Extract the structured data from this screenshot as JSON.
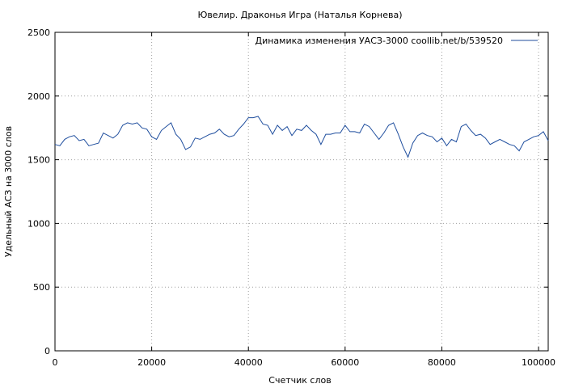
{
  "chart_data": {
    "type": "line",
    "title": "Ювелир. Драконья Игра (Наталья Корнева)",
    "xlabel": "Счетчик слов",
    "ylabel": "Удельный АСЗ на 3000 слов",
    "xlim": [
      0,
      102000
    ],
    "ylim": [
      0,
      2500
    ],
    "xticks": [
      0,
      20000,
      40000,
      60000,
      80000,
      100000
    ],
    "yticks": [
      0,
      500,
      1000,
      1500,
      2000,
      2500
    ],
    "grid": true,
    "legend_position": "top-right",
    "series": [
      {
        "name": "Динамика изменения УАСЗ-3000  coollib.net/b/539520",
        "color": "#1f4e9e",
        "x": [
          0,
          1000,
          2000,
          3000,
          4000,
          5000,
          6000,
          7000,
          8000,
          9000,
          10000,
          11000,
          12000,
          13000,
          14000,
          15000,
          16000,
          17000,
          18000,
          19000,
          20000,
          21000,
          22000,
          23000,
          24000,
          25000,
          26000,
          27000,
          28000,
          29000,
          30000,
          31000,
          32000,
          33000,
          34000,
          35000,
          36000,
          37000,
          38000,
          39000,
          40000,
          41000,
          42000,
          43000,
          44000,
          45000,
          46000,
          47000,
          48000,
          49000,
          50000,
          51000,
          52000,
          53000,
          54000,
          55000,
          56000,
          57000,
          58000,
          59000,
          60000,
          61000,
          62000,
          63000,
          64000,
          65000,
          66000,
          67000,
          68000,
          69000,
          70000,
          71000,
          72000,
          73000,
          74000,
          75000,
          76000,
          77000,
          78000,
          79000,
          80000,
          81000,
          82000,
          83000,
          84000,
          85000,
          86000,
          87000,
          88000,
          89000,
          90000,
          91000,
          92000,
          93000,
          94000,
          95000,
          96000,
          97000,
          98000,
          99000,
          100000,
          101000,
          102000
        ],
        "y": [
          1620,
          1610,
          1660,
          1680,
          1690,
          1650,
          1660,
          1610,
          1620,
          1630,
          1710,
          1690,
          1670,
          1700,
          1770,
          1790,
          1780,
          1790,
          1750,
          1740,
          1680,
          1660,
          1730,
          1760,
          1790,
          1700,
          1660,
          1580,
          1600,
          1670,
          1660,
          1680,
          1700,
          1710,
          1740,
          1700,
          1680,
          1690,
          1740,
          1780,
          1830,
          1830,
          1840,
          1780,
          1770,
          1700,
          1770,
          1730,
          1760,
          1690,
          1740,
          1730,
          1770,
          1730,
          1700,
          1620,
          1700,
          1700,
          1710,
          1710,
          1770,
          1720,
          1720,
          1710,
          1780,
          1760,
          1710,
          1660,
          1710,
          1770,
          1790,
          1700,
          1600,
          1520,
          1630,
          1690,
          1710,
          1690,
          1680,
          1640,
          1670,
          1610,
          1660,
          1640,
          1760,
          1780,
          1730,
          1690,
          1700,
          1670,
          1620,
          1640,
          1660,
          1640,
          1620,
          1610,
          1570,
          1640,
          1660,
          1680,
          1690,
          1720,
          1650
        ]
      }
    ]
  }
}
